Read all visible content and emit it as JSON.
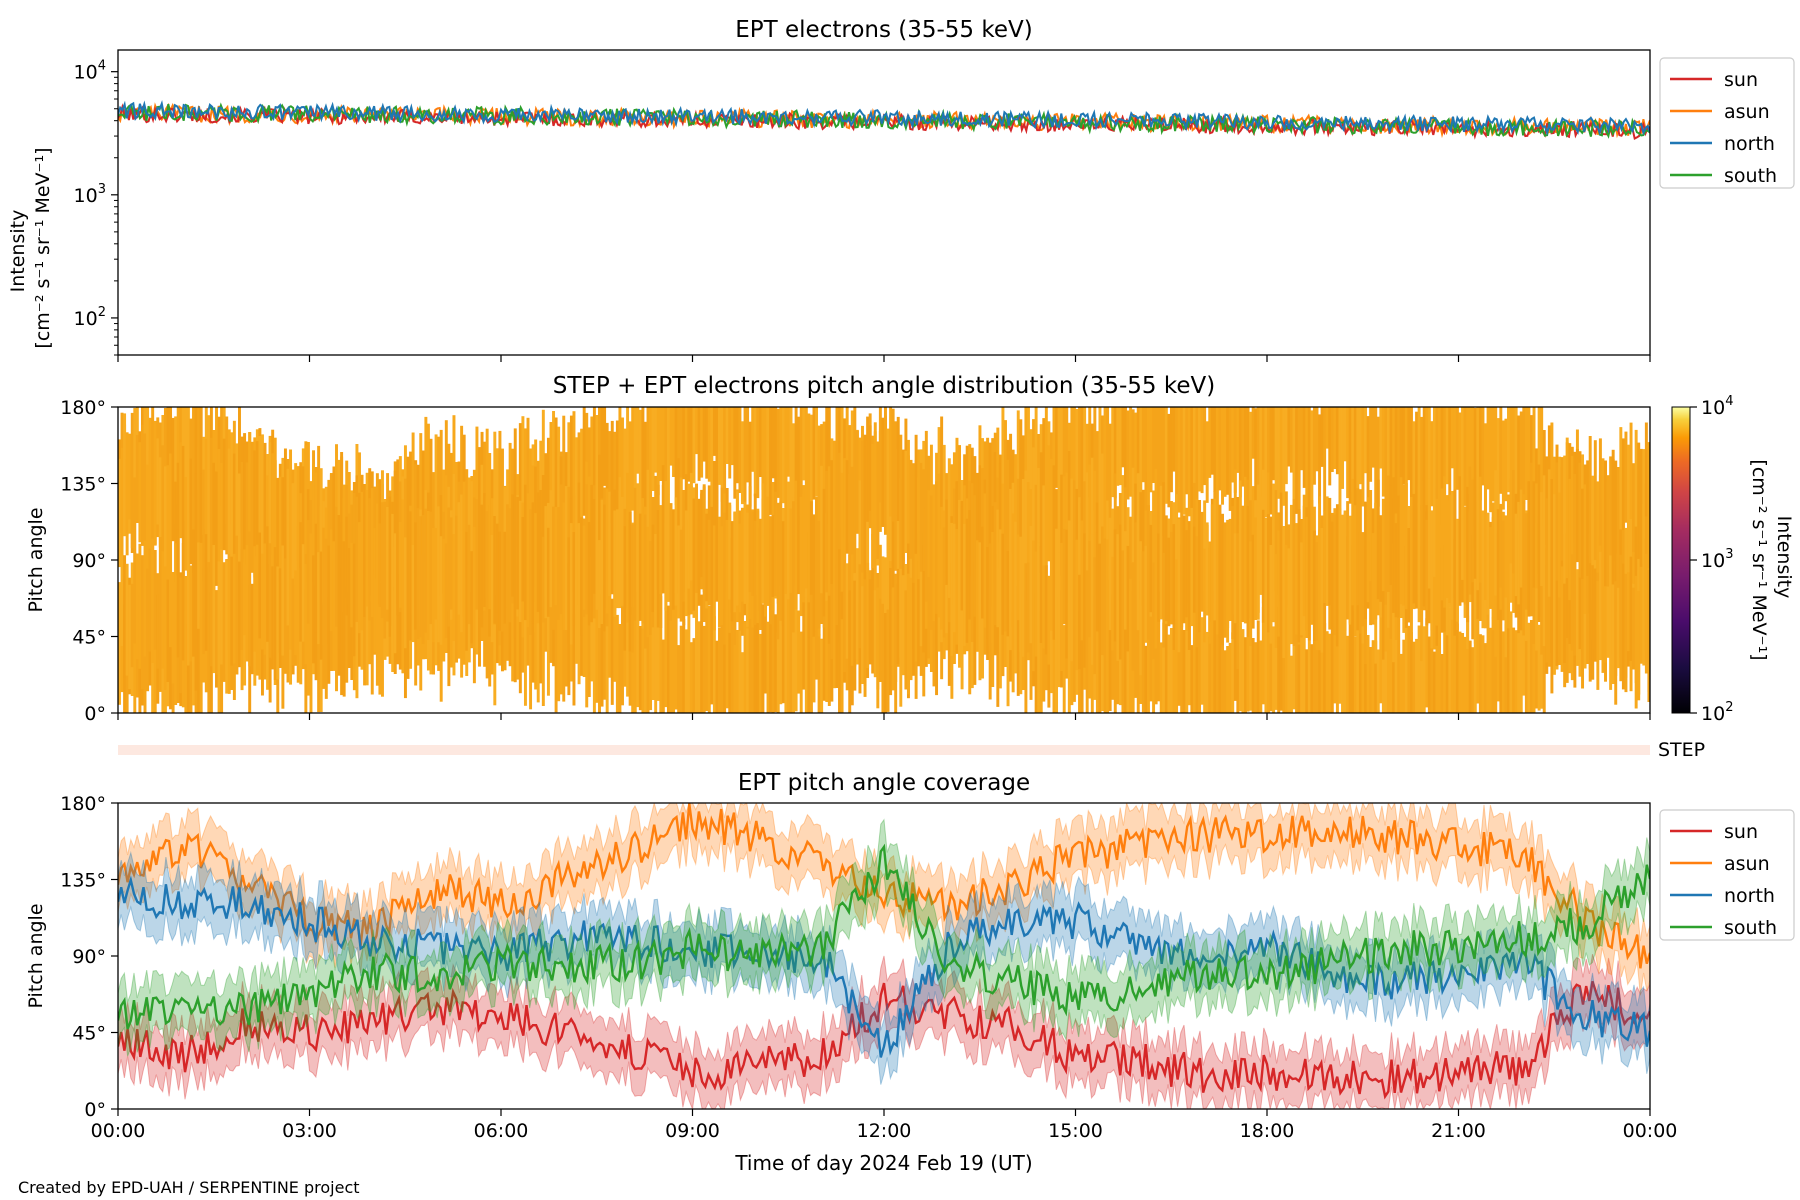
{
  "figure": {
    "footer": "Created by EPD-UAH / SERPENTINE project",
    "xlabel": "Time of day 2024 Feb 19 (UT)",
    "time_ticks": [
      "00:00",
      "03:00",
      "06:00",
      "09:00",
      "12:00",
      "15:00",
      "18:00",
      "21:00",
      "00:00"
    ]
  },
  "chart_data": [
    {
      "type": "line",
      "title": "EPT electrons (35-55 keV)",
      "ylabel": {
        "line1": "Intensity",
        "line2": "[cm⁻² s⁻¹ sr⁻¹ MeV⁻¹]"
      },
      "yscale": "log",
      "ylim": [
        50,
        15000
      ],
      "yticks": [
        {
          "value": 100,
          "base": "10",
          "exp": "2"
        },
        {
          "value": 1000,
          "base": "10",
          "exp": "3"
        },
        {
          "value": 10000,
          "base": "10",
          "exp": "4"
        }
      ],
      "xlim_hours": [
        0,
        24
      ],
      "legend_position": "outside-right",
      "series": [
        {
          "name": "sun",
          "color": "#d62728",
          "start": 4500,
          "end": 3300,
          "noise": 0.09
        },
        {
          "name": "asun",
          "color": "#ff7f0e",
          "start": 4600,
          "end": 3500,
          "noise": 0.1
        },
        {
          "name": "north",
          "color": "#1f77b4",
          "start": 4800,
          "end": 3600,
          "noise": 0.09
        },
        {
          "name": "south",
          "color": "#2ca02c",
          "start": 4700,
          "end": 3400,
          "noise": 0.1
        }
      ]
    },
    {
      "type": "heatmap",
      "title": "STEP + EPT electrons pitch angle distribution (35-55 keV)",
      "ylabel": "Pitch angle",
      "ylim": [
        0,
        180
      ],
      "yticks": [
        "0°",
        "45°",
        "90°",
        "135°",
        "180°"
      ],
      "colorbar": {
        "label": "Intensity",
        "units": "[cm⁻² s⁻¹ sr⁻¹ MeV⁻¹]",
        "scale": "log",
        "range": [
          100,
          10000
        ],
        "ticks": [
          {
            "base": "10",
            "exp": "2"
          },
          {
            "base": "10",
            "exp": "3"
          },
          {
            "base": "10",
            "exp": "4"
          }
        ],
        "colormap": "inferno"
      },
      "dominant_color": "#f5a41a"
    },
    {
      "type": "area",
      "title": "",
      "side_label": "STEP",
      "band_color": "#fde8e0"
    },
    {
      "type": "line",
      "title": "EPT pitch angle coverage",
      "ylabel": "Pitch angle",
      "ylim": [
        0,
        180
      ],
      "yticks": [
        "0°",
        "45°",
        "90°",
        "135°",
        "180°"
      ],
      "legend_position": "outside-right",
      "series": [
        {
          "name": "sun",
          "color": "#d62728",
          "hours": [
            0,
            1,
            2,
            3,
            4,
            5,
            6,
            7,
            8,
            9,
            10,
            11,
            12,
            13,
            14,
            15,
            16,
            17,
            18,
            19,
            20,
            21,
            22,
            23,
            24
          ],
          "values": [
            40,
            30,
            50,
            45,
            50,
            60,
            55,
            45,
            35,
            20,
            25,
            30,
            65,
            55,
            50,
            30,
            28,
            20,
            22,
            20,
            18,
            22,
            25,
            70,
            55
          ]
        },
        {
          "name": "asun",
          "color": "#ff7f0e",
          "hours": [
            0,
            1,
            2,
            3,
            4,
            5,
            6,
            7,
            8,
            9,
            10,
            11,
            12,
            13,
            14,
            15,
            16,
            17,
            18,
            19,
            20,
            21,
            22,
            23,
            24
          ],
          "values": [
            135,
            155,
            135,
            110,
            105,
            130,
            120,
            135,
            150,
            170,
            160,
            145,
            125,
            120,
            130,
            150,
            155,
            162,
            160,
            165,
            160,
            155,
            150,
            110,
            90
          ]
        },
        {
          "name": "north",
          "color": "#1f77b4",
          "hours": [
            0,
            1,
            2,
            3,
            4,
            5,
            6,
            7,
            8,
            9,
            10,
            11,
            12,
            13,
            14,
            15,
            16,
            17,
            18,
            19,
            20,
            21,
            22,
            23,
            24
          ],
          "values": [
            125,
            120,
            120,
            110,
            100,
            95,
            90,
            100,
            100,
            95,
            90,
            90,
            35,
            95,
            110,
            110,
            100,
            85,
            95,
            80,
            75,
            80,
            85,
            55,
            45
          ]
        },
        {
          "name": "south",
          "color": "#2ca02c",
          "hours": [
            0,
            1,
            2,
            3,
            4,
            5,
            6,
            7,
            8,
            9,
            10,
            11,
            12,
            13,
            14,
            15,
            16,
            17,
            18,
            19,
            20,
            21,
            22,
            23,
            24
          ],
          "values": [
            55,
            60,
            60,
            70,
            80,
            80,
            85,
            85,
            85,
            95,
            90,
            95,
            145,
            85,
            75,
            65,
            70,
            80,
            80,
            85,
            95,
            95,
            100,
            110,
            135
          ]
        }
      ]
    }
  ]
}
